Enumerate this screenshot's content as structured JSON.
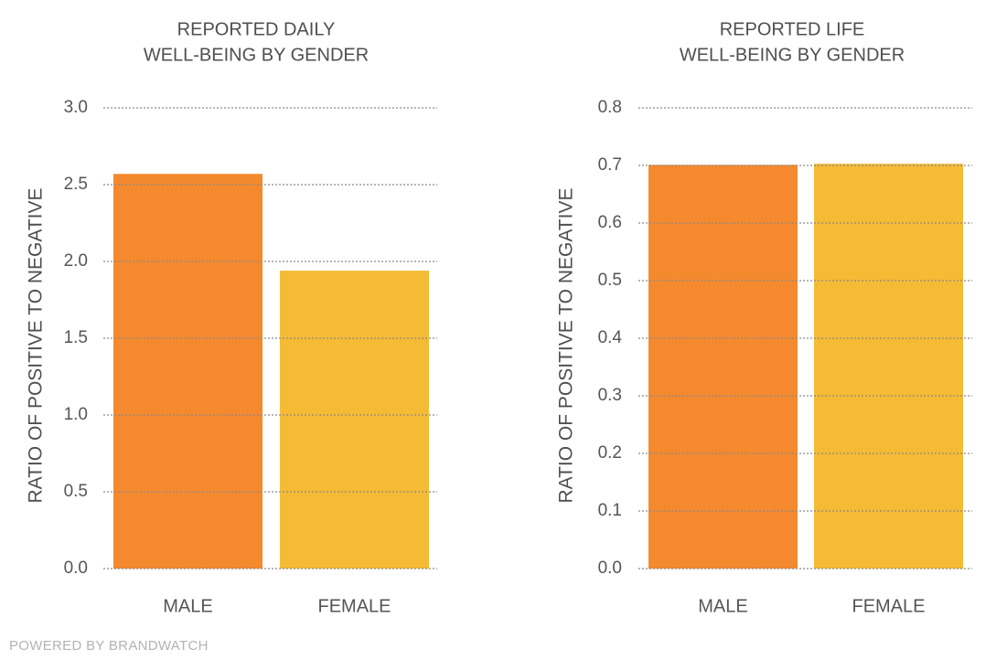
{
  "colors": {
    "male": "#f5892e",
    "female": "#f6bb35",
    "grid": "#8a8a8a",
    "text": "#555555",
    "footer": "#b3b3b3"
  },
  "chart_data": [
    {
      "type": "bar",
      "title_lines": [
        "REPORTED DAILY",
        "WELL-BEING BY GENDER"
      ],
      "ylabel": "RATIO OF POSITIVE TO NEGATIVE",
      "categories": [
        "MALE",
        "FEMALE"
      ],
      "values": [
        2.57,
        1.94
      ],
      "yticks": [
        "0.0",
        "0.5",
        "1.0",
        "1.5",
        "2.0",
        "2.5",
        "3.0"
      ],
      "ylim": [
        0,
        3.0
      ],
      "grid": true
    },
    {
      "type": "bar",
      "title_lines": [
        "REPORTED LIFE",
        "WELL-BEING BY GENDER"
      ],
      "ylabel": "RATIO OF POSITIVE TO NEGATIVE",
      "categories": [
        "MALE",
        "FEMALE"
      ],
      "values": [
        0.701,
        0.703
      ],
      "yticks": [
        "0.0",
        "0.1",
        "0.2",
        "0.3",
        "0.4",
        "0.5",
        "0.6",
        "0.7",
        "0.8"
      ],
      "ylim": [
        0,
        0.8
      ],
      "grid": true
    }
  ],
  "footer": "POWERED BY BRANDWATCH"
}
